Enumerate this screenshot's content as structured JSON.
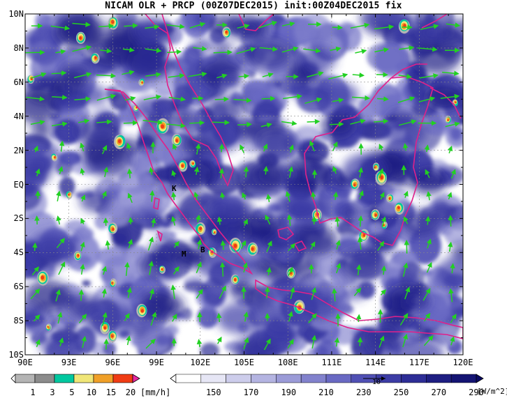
{
  "title": "NICAM OLR + PRCP (00Z07DEC2015) init:00Z04DEC2015 fix",
  "map": {
    "lat_labels": [
      "10N",
      "8N",
      "6N",
      "4N",
      "2N",
      "EQ",
      "2S",
      "4S",
      "6S",
      "8S",
      "10S"
    ],
    "lon_labels": [
      "90E",
      "93E",
      "96E",
      "99E",
      "102E",
      "105E",
      "108E",
      "111E",
      "114E",
      "117E",
      "120E"
    ],
    "lon_range": [
      90,
      120
    ],
    "lat_range": [
      -10,
      10
    ],
    "grid": true,
    "background_color": "#ffffff",
    "cloud_color": "#3c46a0",
    "coast_color": "#e0208a",
    "vector_color": "#22d022",
    "station_labels": [
      "K",
      "M",
      "B"
    ]
  },
  "precip_colorbar": {
    "ticks": [
      "1",
      "3",
      "5",
      "10",
      "15",
      "20"
    ],
    "unit": "[mm/h]",
    "colors": [
      "#b4b4b4",
      "#8c8c8c",
      "#00c8a0",
      "#f0e678",
      "#f0a028",
      "#f03c14",
      "#e628a0"
    ]
  },
  "olr_colorbar": {
    "ticks": [
      "150",
      "170",
      "190",
      "210",
      "230",
      "250",
      "270",
      "290"
    ],
    "unit": "[W/m^2]",
    "colors": [
      "#ffffff",
      "#e6e6f5",
      "#cdcdeb",
      "#b4b4e1",
      "#9b9bd7",
      "#8282cd",
      "#6969c3",
      "#5050b4",
      "#3c3ca5",
      "#2d2d96",
      "#1e1e82",
      "#141473"
    ],
    "vector_ref": "10"
  }
}
